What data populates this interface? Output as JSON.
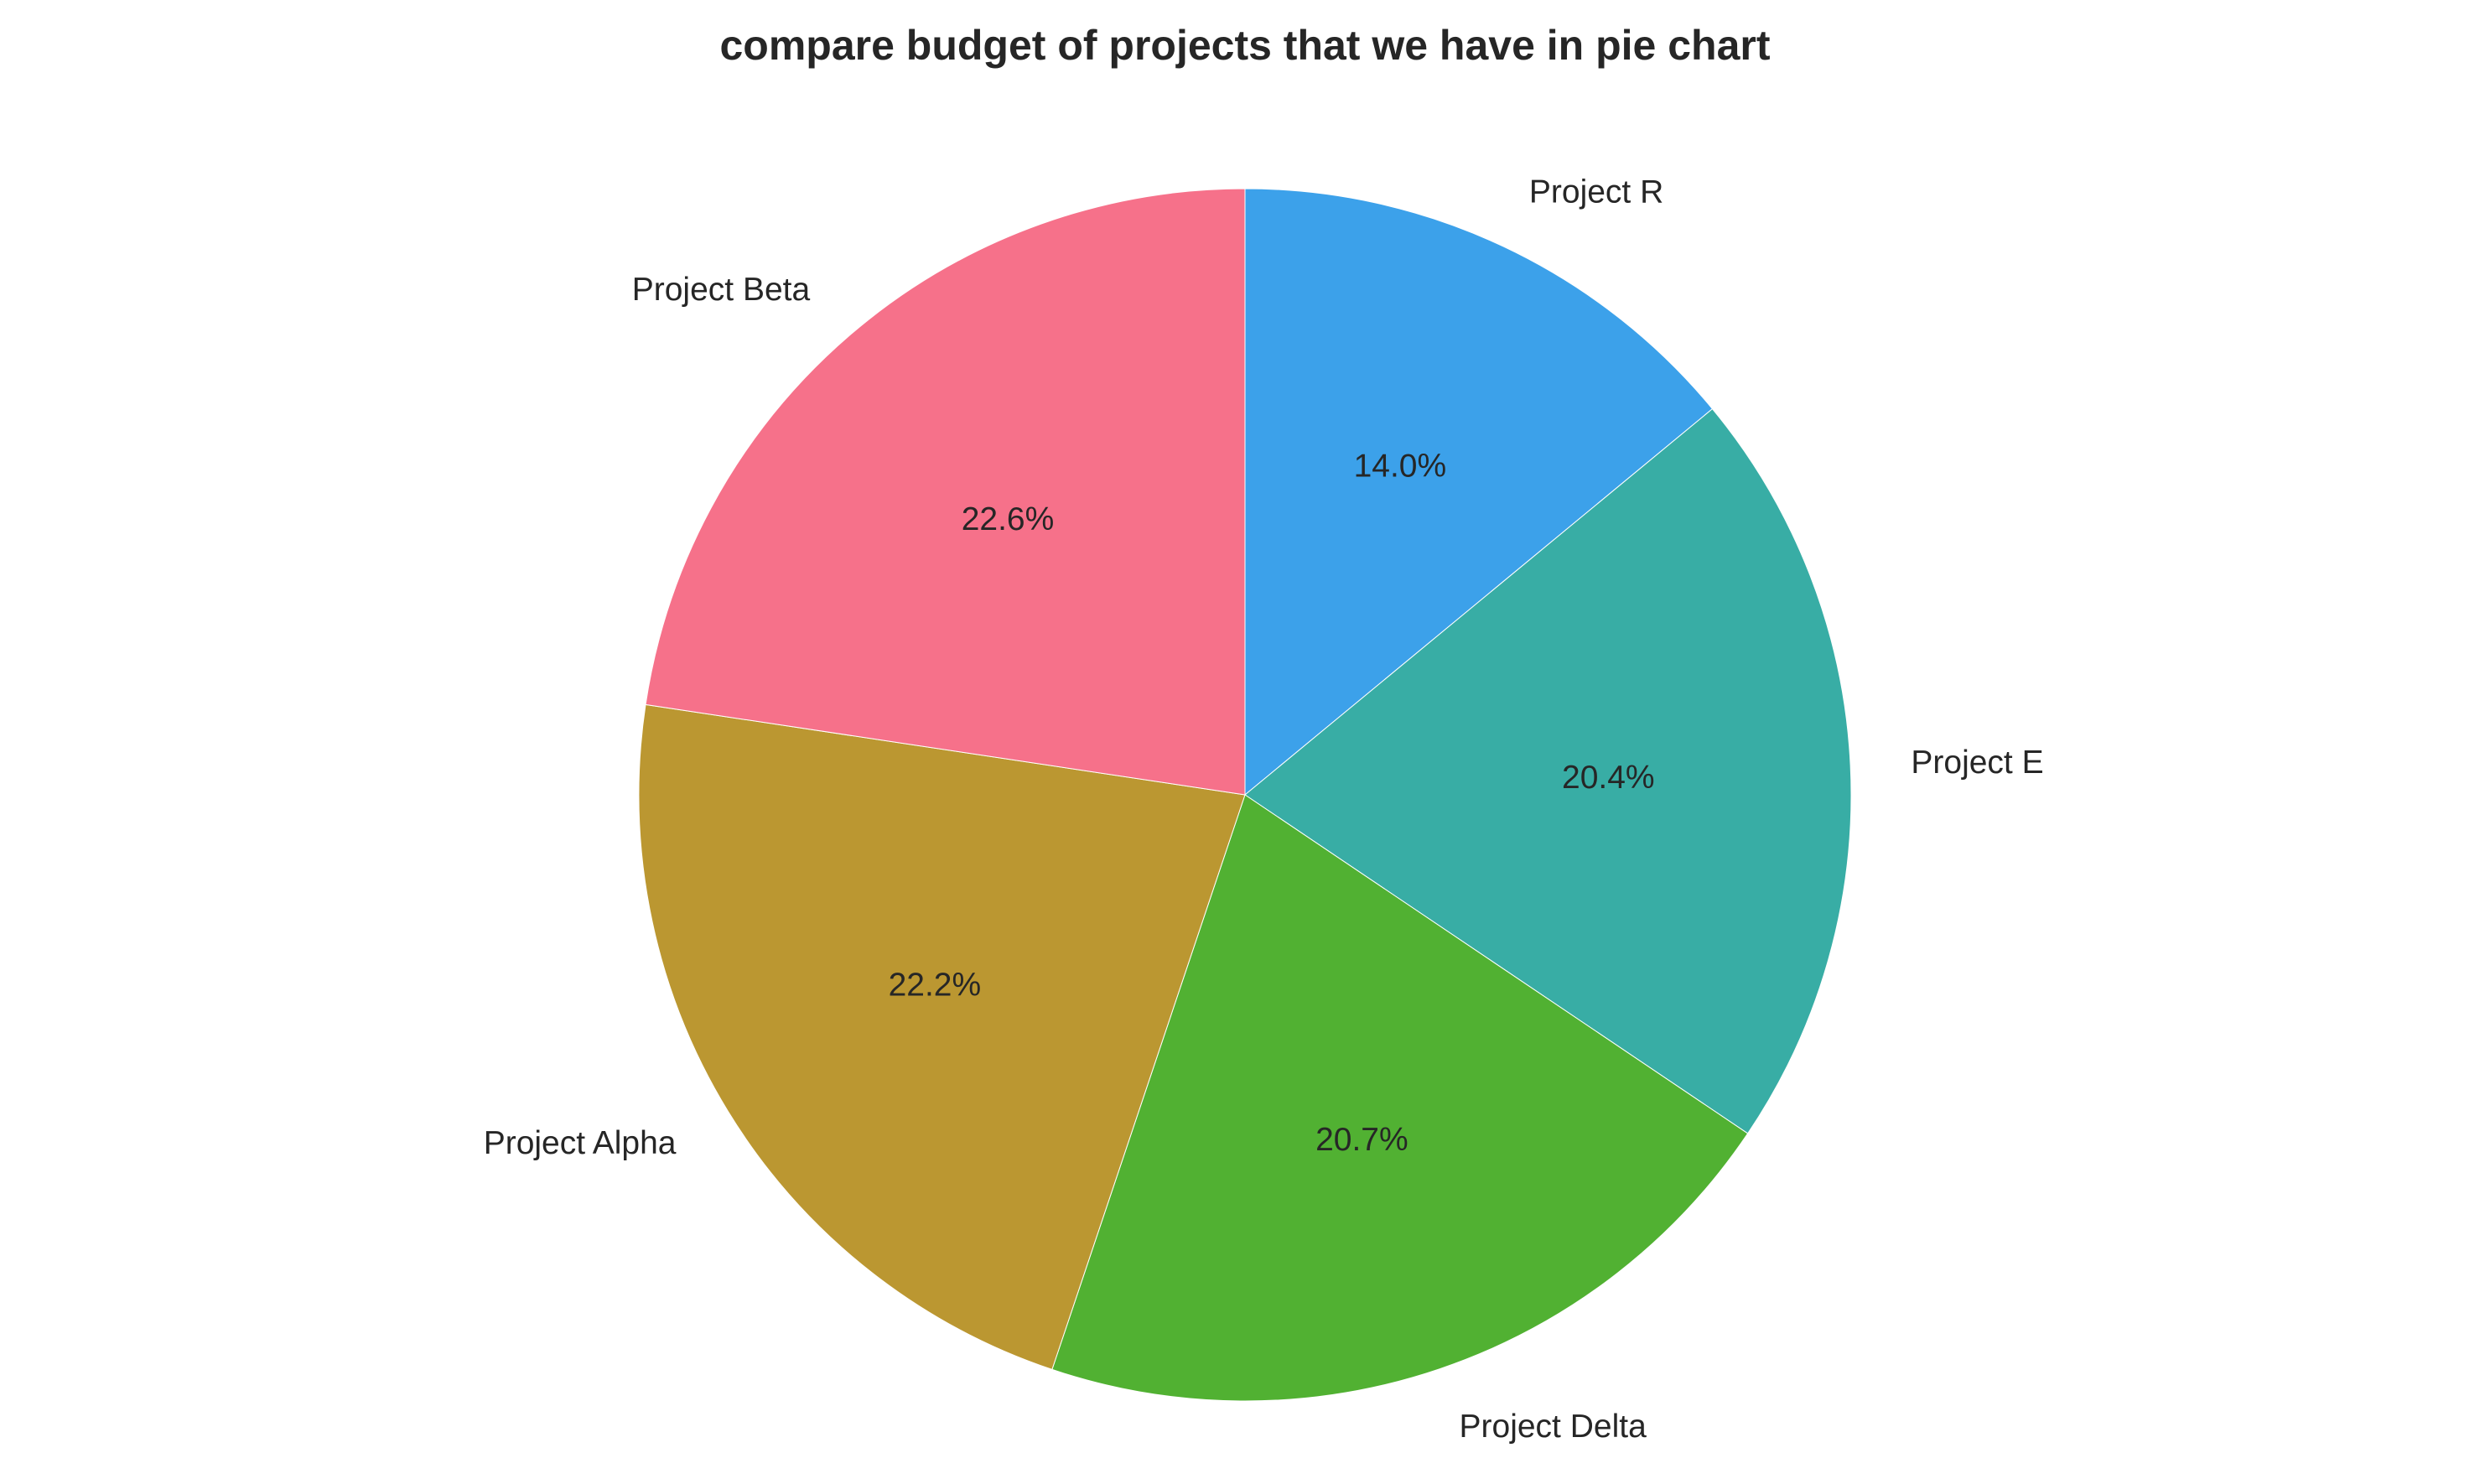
{
  "chart_data": {
    "type": "pie",
    "title": "compare budget of projects that we have in pie chart",
    "start_angle_deg": 90,
    "direction": "clockwise",
    "slices": [
      {
        "label": "Project R",
        "value": 14.0,
        "pct_label": "14.0%",
        "color": "#3ca1ea"
      },
      {
        "label": "Project E",
        "value": 20.4,
        "pct_label": "20.4%",
        "color": "#38ada5"
      },
      {
        "label": "Project Delta",
        "value": 20.7,
        "pct_label": "20.7%",
        "color": "#51b132"
      },
      {
        "label": "Project Alpha",
        "value": 22.2,
        "pct_label": "22.2%",
        "color": "#bb9731"
      },
      {
        "label": "Project Beta",
        "value": 22.6,
        "pct_label": "22.6%",
        "color": "#f6718a"
      }
    ]
  }
}
